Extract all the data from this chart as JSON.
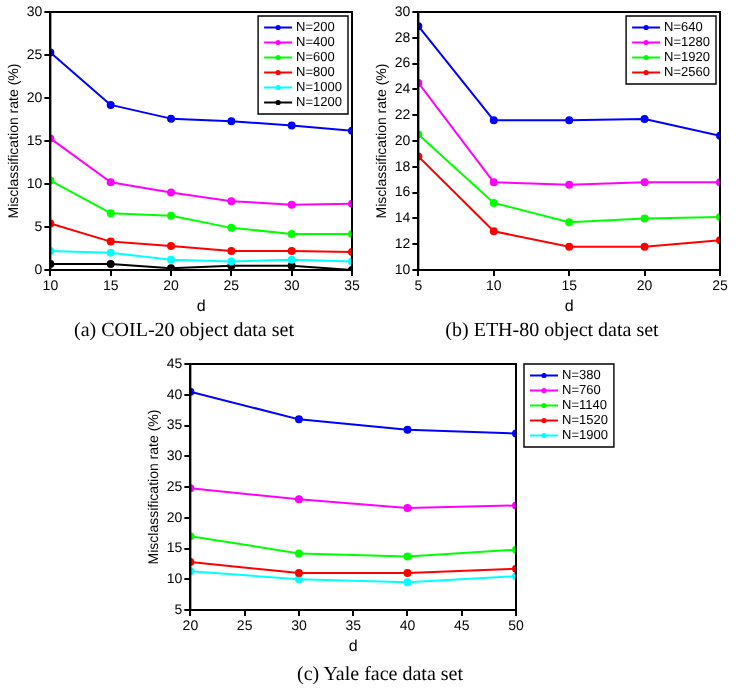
{
  "chart_data": [
    {
      "type": "line",
      "title": "(a) COIL-20 object data set",
      "xlabel": "d",
      "ylabel": "Misclassification rate (%)",
      "x": [
        10,
        15,
        20,
        25,
        30,
        35
      ],
      "xlim": [
        10,
        35
      ],
      "xticks": [
        10,
        15,
        20,
        25,
        30,
        35
      ],
      "ylim": [
        0,
        30
      ],
      "yticks": [
        0,
        5,
        10,
        15,
        20,
        25,
        30
      ],
      "legend": "top right",
      "marker": "circle",
      "series": [
        {
          "name": "N=200",
          "color": "#0000ff",
          "values": [
            25.3,
            19.2,
            17.6,
            17.3,
            16.8,
            16.2
          ]
        },
        {
          "name": "N=400",
          "color": "#ff00ff",
          "values": [
            15.3,
            10.2,
            9.0,
            8.0,
            7.6,
            7.7
          ]
        },
        {
          "name": "N=600",
          "color": "#00ff00",
          "values": [
            10.4,
            6.6,
            6.3,
            4.9,
            4.2,
            4.2
          ]
        },
        {
          "name": "N=800",
          "color": "#ff0000",
          "values": [
            5.4,
            3.3,
            2.8,
            2.2,
            2.2,
            2.1
          ]
        },
        {
          "name": "N=1000",
          "color": "#00ffff",
          "values": [
            2.2,
            2.0,
            1.2,
            1.0,
            1.2,
            1.0
          ]
        },
        {
          "name": "N=1200",
          "color": "#000000",
          "values": [
            0.7,
            0.7,
            0.2,
            0.5,
            0.5,
            0.0
          ]
        }
      ]
    },
    {
      "type": "line",
      "title": "(b) ETH-80 object data set",
      "xlabel": "d",
      "ylabel": "Misclassification rate (%)",
      "x": [
        5,
        10,
        15,
        20,
        25
      ],
      "xlim": [
        5,
        25
      ],
      "xticks": [
        5,
        10,
        15,
        20,
        25
      ],
      "ylim": [
        10,
        30
      ],
      "yticks": [
        10,
        12,
        14,
        16,
        18,
        20,
        22,
        24,
        26,
        28,
        30
      ],
      "legend": "top right",
      "marker": "circle",
      "series": [
        {
          "name": "N=640",
          "color": "#0000ff",
          "values": [
            28.9,
            21.6,
            21.6,
            21.7,
            20.4
          ]
        },
        {
          "name": "N=1280",
          "color": "#ff00ff",
          "values": [
            24.5,
            16.8,
            16.6,
            16.8,
            16.8
          ]
        },
        {
          "name": "N=1920",
          "color": "#00ff00",
          "values": [
            20.5,
            15.2,
            13.7,
            14.0,
            14.1
          ]
        },
        {
          "name": "N=2560",
          "color": "#ff0000",
          "values": [
            18.8,
            13.0,
            11.8,
            11.8,
            12.3
          ]
        }
      ]
    },
    {
      "type": "line",
      "title": "(c) Yale face data set",
      "xlabel": "d",
      "ylabel": "Misclassification rate (%)",
      "x": [
        20,
        30,
        40,
        50
      ],
      "xlim": [
        20,
        50
      ],
      "xticks": [
        20,
        25,
        30,
        35,
        40,
        45,
        50
      ],
      "ylim": [
        5,
        45
      ],
      "yticks": [
        5,
        10,
        15,
        20,
        25,
        30,
        35,
        40,
        45
      ],
      "legend": "right",
      "marker": "circle",
      "series": [
        {
          "name": "N=380",
          "color": "#0000ff",
          "values": [
            40.5,
            36.0,
            34.3,
            33.7
          ]
        },
        {
          "name": "N=760",
          "color": "#ff00ff",
          "values": [
            24.8,
            23.0,
            21.6,
            22.0
          ]
        },
        {
          "name": "N=1140",
          "color": "#00ff00",
          "values": [
            17.0,
            14.2,
            13.7,
            14.8
          ]
        },
        {
          "name": "N=1520",
          "color": "#ff0000",
          "values": [
            12.8,
            11.0,
            11.0,
            11.7
          ]
        },
        {
          "name": "N=1900",
          "color": "#00ffff",
          "values": [
            11.3,
            10.0,
            9.5,
            10.5
          ]
        }
      ]
    }
  ]
}
